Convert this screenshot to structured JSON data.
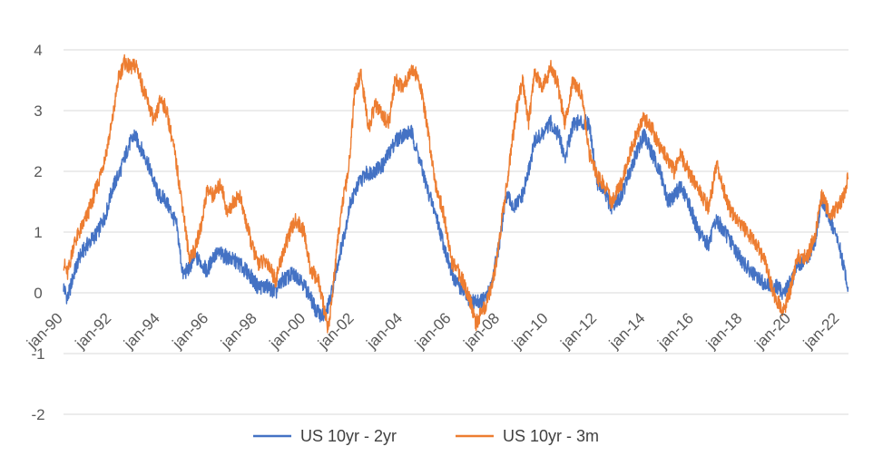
{
  "chart_data": {
    "type": "line",
    "title": "",
    "xlabel": "",
    "ylabel": "",
    "ylim": [
      -2,
      4
    ],
    "yticks": [
      "4",
      "3",
      "2",
      "1",
      "0",
      "-1",
      "-2"
    ],
    "xticks": [
      "jan-90",
      "jan-92",
      "jan-94",
      "jan-96",
      "jan-98",
      "jan-00",
      "jan-02",
      "jan-04",
      "jan-06",
      "jan-08",
      "jan-10",
      "jan-12",
      "jan-14",
      "jan-16",
      "jan-18",
      "jan-20",
      "jan-22"
    ],
    "grid": "horizontal",
    "legend_position": "bottom",
    "series": [
      {
        "name": "US 10yr - 2yr",
        "color": "#4472C4",
        "points": [
          [
            "1990-01",
            0.1
          ],
          [
            "1990-03",
            -0.1
          ],
          [
            "1990-06",
            0.3
          ],
          [
            "1990-09",
            0.6
          ],
          [
            "1991-01",
            0.8
          ],
          [
            "1991-06",
            1.0
          ],
          [
            "1991-10",
            1.3
          ],
          [
            "1992-01",
            1.7
          ],
          [
            "1992-05",
            2.0
          ],
          [
            "1992-09",
            2.4
          ],
          [
            "1992-12",
            2.6
          ],
          [
            "1993-03",
            2.4
          ],
          [
            "1993-06",
            2.2
          ],
          [
            "1993-09",
            1.9
          ],
          [
            "1993-12",
            1.6
          ],
          [
            "1994-03",
            1.55
          ],
          [
            "1994-06",
            1.35
          ],
          [
            "1994-09",
            1.1
          ],
          [
            "1994-12",
            0.3
          ],
          [
            "1995-03",
            0.4
          ],
          [
            "1995-06",
            0.6
          ],
          [
            "1995-09",
            0.5
          ],
          [
            "1995-12",
            0.35
          ],
          [
            "1996-03",
            0.6
          ],
          [
            "1996-06",
            0.65
          ],
          [
            "1996-09",
            0.6
          ],
          [
            "1996-12",
            0.55
          ],
          [
            "1997-03",
            0.5
          ],
          [
            "1997-06",
            0.4
          ],
          [
            "1997-09",
            0.3
          ],
          [
            "1998-01",
            0.1
          ],
          [
            "1998-06",
            0.1
          ],
          [
            "1998-10",
            0.0
          ],
          [
            "1999-01",
            0.2
          ],
          [
            "1999-06",
            0.3
          ],
          [
            "1999-10",
            0.25
          ],
          [
            "2000-02",
            0.0
          ],
          [
            "2000-06",
            -0.3
          ],
          [
            "2000-10",
            -0.4
          ],
          [
            "2001-01",
            -0.1
          ],
          [
            "2001-04",
            0.4
          ],
          [
            "2001-08",
            1.0
          ],
          [
            "2001-11",
            1.5
          ],
          [
            "2002-03",
            1.8
          ],
          [
            "2002-06",
            1.95
          ],
          [
            "2002-10",
            2.0
          ],
          [
            "2003-03",
            2.1
          ],
          [
            "2003-06",
            2.3
          ],
          [
            "2003-09",
            2.5
          ],
          [
            "2004-01",
            2.6
          ],
          [
            "2004-05",
            2.65
          ],
          [
            "2004-09",
            2.2
          ],
          [
            "2005-01",
            1.7
          ],
          [
            "2005-05",
            1.3
          ],
          [
            "2005-09",
            0.8
          ],
          [
            "2006-01",
            0.3
          ],
          [
            "2006-05",
            0.1
          ],
          [
            "2006-09",
            -0.1
          ],
          [
            "2007-01",
            -0.15
          ],
          [
            "2007-06",
            -0.1
          ],
          [
            "2007-09",
            0.2
          ],
          [
            "2008-01",
            0.9
          ],
          [
            "2008-04",
            1.6
          ],
          [
            "2008-08",
            1.4
          ],
          [
            "2008-12",
            1.6
          ],
          [
            "2009-03",
            2.0
          ],
          [
            "2009-06",
            2.5
          ],
          [
            "2009-10",
            2.6
          ],
          [
            "2010-02",
            2.8
          ],
          [
            "2010-06",
            2.6
          ],
          [
            "2010-09",
            2.2
          ],
          [
            "2011-01",
            2.8
          ],
          [
            "2011-05",
            2.8
          ],
          [
            "2011-09",
            2.8
          ],
          [
            "2012-01",
            1.8
          ],
          [
            "2012-04",
            1.7
          ],
          [
            "2012-08",
            1.4
          ],
          [
            "2013-01",
            1.6
          ],
          [
            "2013-06",
            2.1
          ],
          [
            "2013-12",
            2.6
          ],
          [
            "2014-04",
            2.3
          ],
          [
            "2014-08",
            2.0
          ],
          [
            "2014-12",
            1.5
          ],
          [
            "2015-03",
            1.6
          ],
          [
            "2015-06",
            1.75
          ],
          [
            "2015-10",
            1.5
          ],
          [
            "2016-03",
            1.0
          ],
          [
            "2016-08",
            0.8
          ],
          [
            "2016-12",
            1.2
          ],
          [
            "2017-06",
            0.9
          ],
          [
            "2017-12",
            0.55
          ],
          [
            "2018-06",
            0.3
          ],
          [
            "2018-12",
            0.15
          ],
          [
            "2019-06",
            0.1
          ],
          [
            "2019-09",
            0.0
          ],
          [
            "2020-01",
            0.2
          ],
          [
            "2020-04",
            0.45
          ],
          [
            "2020-09",
            0.55
          ],
          [
            "2021-01",
            0.9
          ],
          [
            "2021-04",
            1.55
          ],
          [
            "2021-08",
            1.2
          ],
          [
            "2021-12",
            0.85
          ],
          [
            "2022-03",
            0.4
          ],
          [
            "2022-05",
            0.1
          ]
        ]
      },
      {
        "name": "US 10yr - 3m",
        "color": "#ED7D31",
        "points": [
          [
            "1990-01",
            0.5
          ],
          [
            "1990-03",
            0.3
          ],
          [
            "1990-06",
            0.8
          ],
          [
            "1990-09",
            1.0
          ],
          [
            "1991-01",
            1.3
          ],
          [
            "1991-06",
            1.8
          ],
          [
            "1991-10",
            2.3
          ],
          [
            "1992-01",
            2.8
          ],
          [
            "1992-04",
            3.5
          ],
          [
            "1992-07",
            3.8
          ],
          [
            "1992-10",
            3.7
          ],
          [
            "1993-01",
            3.75
          ],
          [
            "1993-04",
            3.4
          ],
          [
            "1993-07",
            3.1
          ],
          [
            "1993-10",
            2.8
          ],
          [
            "1994-01",
            3.2
          ],
          [
            "1994-04",
            3.0
          ],
          [
            "1994-08",
            2.3
          ],
          [
            "1994-12",
            1.4
          ],
          [
            "1995-03",
            0.6
          ],
          [
            "1995-06",
            0.7
          ],
          [
            "1995-09",
            1.1
          ],
          [
            "1995-12",
            1.7
          ],
          [
            "1996-03",
            1.6
          ],
          [
            "1996-07",
            1.8
          ],
          [
            "1996-10",
            1.3
          ],
          [
            "1997-01",
            1.5
          ],
          [
            "1997-04",
            1.6
          ],
          [
            "1997-07",
            1.2
          ],
          [
            "1997-10",
            0.8
          ],
          [
            "1998-01",
            0.5
          ],
          [
            "1998-06",
            0.5
          ],
          [
            "1998-10",
            0.2
          ],
          [
            "1999-01",
            0.6
          ],
          [
            "1999-05",
            1.0
          ],
          [
            "1999-08",
            1.2
          ],
          [
            "1999-12",
            1.0
          ],
          [
            "2000-03",
            0.4
          ],
          [
            "2000-07",
            0.2
          ],
          [
            "2000-12",
            -0.6
          ],
          [
            "2001-03",
            0.3
          ],
          [
            "2001-06",
            1.3
          ],
          [
            "2001-10",
            2.0
          ],
          [
            "2002-01",
            3.3
          ],
          [
            "2002-04",
            3.6
          ],
          [
            "2002-08",
            2.7
          ],
          [
            "2002-11",
            3.1
          ],
          [
            "2003-03",
            2.9
          ],
          [
            "2003-06",
            2.8
          ],
          [
            "2003-09",
            3.5
          ],
          [
            "2004-01",
            3.4
          ],
          [
            "2004-05",
            3.7
          ],
          [
            "2004-09",
            3.5
          ],
          [
            "2005-01",
            2.7
          ],
          [
            "2005-05",
            1.8
          ],
          [
            "2005-09",
            1.3
          ],
          [
            "2006-01",
            0.5
          ],
          [
            "2006-05",
            0.3
          ],
          [
            "2006-09",
            0.0
          ],
          [
            "2007-01",
            -0.5
          ],
          [
            "2007-06",
            -0.2
          ],
          [
            "2007-10",
            0.3
          ],
          [
            "2008-01",
            1.0
          ],
          [
            "2008-05",
            2.0
          ],
          [
            "2008-09",
            3.0
          ],
          [
            "2008-12",
            3.5
          ],
          [
            "2009-03",
            2.8
          ],
          [
            "2009-06",
            3.6
          ],
          [
            "2009-10",
            3.4
          ],
          [
            "2010-02",
            3.7
          ],
          [
            "2010-05",
            3.5
          ],
          [
            "2010-09",
            2.8
          ],
          [
            "2011-01",
            3.5
          ],
          [
            "2011-05",
            3.3
          ],
          [
            "2011-09",
            2.3
          ],
          [
            "2012-01",
            1.9
          ],
          [
            "2012-04",
            1.8
          ],
          [
            "2012-08",
            1.5
          ],
          [
            "2013-01",
            1.8
          ],
          [
            "2013-06",
            2.4
          ],
          [
            "2013-12",
            2.9
          ],
          [
            "2014-04",
            2.7
          ],
          [
            "2014-08",
            2.4
          ],
          [
            "2014-12",
            2.2
          ],
          [
            "2015-03",
            2.0
          ],
          [
            "2015-06",
            2.3
          ],
          [
            "2015-10",
            2.0
          ],
          [
            "2016-03",
            1.7
          ],
          [
            "2016-08",
            1.4
          ],
          [
            "2016-12",
            2.1
          ],
          [
            "2017-06",
            1.4
          ],
          [
            "2017-12",
            1.1
          ],
          [
            "2018-06",
            0.9
          ],
          [
            "2018-12",
            0.5
          ],
          [
            "2019-04",
            0.0
          ],
          [
            "2019-09",
            -0.3
          ],
          [
            "2020-01",
            0.1
          ],
          [
            "2020-04",
            0.6
          ],
          [
            "2020-09",
            0.6
          ],
          [
            "2021-01",
            1.0
          ],
          [
            "2021-04",
            1.6
          ],
          [
            "2021-08",
            1.3
          ],
          [
            "2021-12",
            1.4
          ],
          [
            "2022-03",
            1.6
          ],
          [
            "2022-05",
            1.9
          ]
        ]
      }
    ]
  }
}
